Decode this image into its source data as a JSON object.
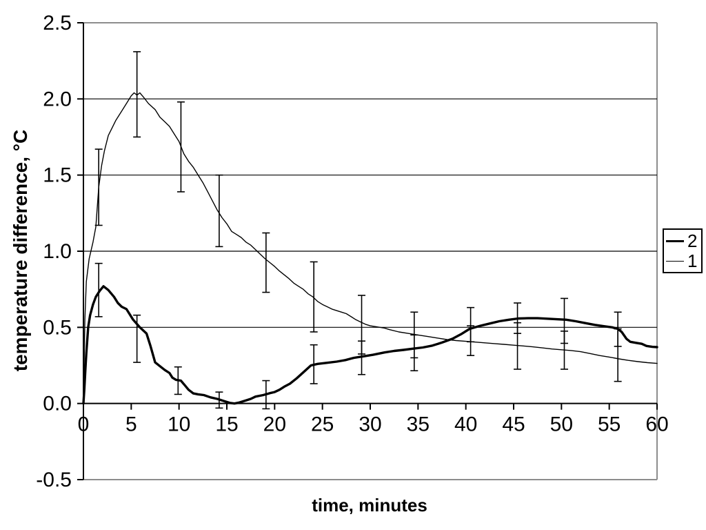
{
  "chart_data": {
    "type": "line",
    "title": "",
    "xlabel": "time, minutes",
    "ylabel": "temperature difference, °C",
    "xlim": [
      0,
      60
    ],
    "ylim": [
      -0.5,
      2.5
    ],
    "xticks": [
      0,
      5,
      10,
      15,
      20,
      25,
      30,
      35,
      40,
      45,
      50,
      55,
      60
    ],
    "ytick_values": [
      2.5,
      2.0,
      1.5,
      1.0,
      0.5,
      0.0,
      -0.5
    ],
    "ytick_labels": [
      "2.5",
      "2.0",
      "1.5",
      "1.0",
      "0.5",
      "0.0",
      "-0.5"
    ],
    "grid": "horizontal gridlines every 0.5",
    "legend": {
      "position": "right-outside",
      "entries": [
        "2",
        "1"
      ]
    },
    "colors": {
      "line": "#000000",
      "gridline": "#000000",
      "plot_border": "#8c8c8c",
      "background": "#ffffff"
    },
    "series": [
      {
        "name": "2",
        "style": "thick",
        "t": [
          0,
          0.1,
          0.2,
          0.3,
          0.5,
          0.7,
          1,
          1.3,
          1.7,
          2.1,
          2.6,
          3.2,
          3.6,
          4,
          4.5,
          5.2,
          5.9,
          6.6,
          7,
          7.5,
          8,
          8.5,
          9,
          9.3,
          9.7,
          10.2,
          10.6,
          11,
          11.5,
          12,
          12.6,
          13.3,
          14,
          14.7,
          15.3,
          15.8,
          16.3,
          17,
          17.5,
          18,
          18.8,
          19.5,
          20,
          20.5,
          21,
          21.6,
          22.3,
          23.1,
          23.8,
          24.5,
          25.5,
          26.5,
          27.4,
          28.3,
          29.3,
          30.3,
          31.5,
          32.5,
          33.5,
          34.5,
          35.5,
          36.5,
          37.5,
          38.6,
          39.5,
          40.4,
          41.5,
          42.5,
          43.5,
          44.5,
          45.5,
          46.5,
          47.5,
          48.5,
          49.5,
          50.5,
          51.5,
          52.5,
          53.5,
          54.5,
          55.3,
          55.9,
          56.3,
          56.8,
          57.2,
          57.8,
          58.4,
          58.9,
          59.5,
          60
        ],
        "v": [
          0,
          0.1,
          0.22,
          0.33,
          0.5,
          0.58,
          0.65,
          0.7,
          0.74,
          0.77,
          0.745,
          0.7,
          0.66,
          0.635,
          0.62,
          0.55,
          0.5,
          0.46,
          0.38,
          0.27,
          0.245,
          0.22,
          0.2,
          0.17,
          0.155,
          0.15,
          0.12,
          0.09,
          0.066,
          0.06,
          0.055,
          0.04,
          0.03,
          0.016,
          0.004,
          0,
          0.006,
          0.02,
          0.03,
          0.045,
          0.055,
          0.068,
          0.075,
          0.09,
          0.11,
          0.13,
          0.165,
          0.21,
          0.25,
          0.26,
          0.267,
          0.275,
          0.285,
          0.3,
          0.31,
          0.32,
          0.335,
          0.345,
          0.352,
          0.36,
          0.368,
          0.38,
          0.4,
          0.425,
          0.455,
          0.49,
          0.51,
          0.525,
          0.54,
          0.55,
          0.558,
          0.56,
          0.56,
          0.557,
          0.553,
          0.55,
          0.54,
          0.528,
          0.516,
          0.507,
          0.5,
          0.49,
          0.47,
          0.425,
          0.405,
          0.398,
          0.392,
          0.378,
          0.372,
          0.37
        ],
        "error_bars": [
          {
            "t": 1.6,
            "low": 0.57,
            "high": 0.92
          },
          {
            "t": 5.6,
            "low": 0.27,
            "high": 0.58
          },
          {
            "t": 9.9,
            "low": 0.06,
            "high": 0.24
          },
          {
            "t": 14.2,
            "low": -0.03,
            "high": 0.075
          },
          {
            "t": 19.1,
            "low": -0.035,
            "high": 0.15
          },
          {
            "t": 24.1,
            "low": 0.13,
            "high": 0.385
          },
          {
            "t": 29.1,
            "low": 0.19,
            "high": 0.41
          },
          {
            "t": 34.6,
            "low": 0.215,
            "high": 0.45
          },
          {
            "t": 40.5,
            "low": 0.405,
            "high": 0.63
          },
          {
            "t": 45.4,
            "low": 0.46,
            "high": 0.66
          },
          {
            "t": 50.3,
            "low": 0.395,
            "high": 0.69
          },
          {
            "t": 55.9,
            "low": 0.375,
            "high": 0.6
          }
        ]
      },
      {
        "name": "1",
        "style": "thin",
        "t": [
          0,
          0.15,
          0.3,
          0.6,
          1,
          1.3,
          1.6,
          1.9,
          2.2,
          2.6,
          3,
          3.4,
          4,
          4.5,
          5,
          5.3,
          5.6,
          5.9,
          6.3,
          6.8,
          7.5,
          8,
          8.5,
          9,
          9.5,
          10,
          10.5,
          11,
          11.5,
          12,
          12.5,
          13,
          13.5,
          14,
          14.5,
          15,
          15.5,
          16,
          16.5,
          17,
          17.5,
          18,
          18.5,
          19,
          19.5,
          20,
          20.5,
          21,
          21.5,
          22,
          22.5,
          23,
          23.5,
          24,
          24.5,
          25,
          25.5,
          26,
          27,
          27.5,
          28,
          28.5,
          29,
          29.5,
          30,
          31,
          31.5,
          32,
          33,
          34,
          35,
          36,
          37,
          38,
          39,
          40,
          41,
          42,
          43,
          44,
          45,
          46,
          47,
          48,
          49,
          50,
          51,
          52,
          53,
          54,
          55,
          56,
          57,
          58,
          59,
          60
        ],
        "v": [
          0,
          0.55,
          0.8,
          0.95,
          1.06,
          1.16,
          1.42,
          1.56,
          1.66,
          1.76,
          1.81,
          1.86,
          1.92,
          1.97,
          2.02,
          2.04,
          2.025,
          2.04,
          2.01,
          1.97,
          1.93,
          1.88,
          1.85,
          1.82,
          1.77,
          1.72,
          1.64,
          1.59,
          1.55,
          1.5,
          1.45,
          1.39,
          1.33,
          1.27,
          1.22,
          1.18,
          1.13,
          1.11,
          1.09,
          1.06,
          1.04,
          1.01,
          0.98,
          0.95,
          0.925,
          0.9,
          0.87,
          0.845,
          0.82,
          0.79,
          0.77,
          0.75,
          0.72,
          0.7,
          0.67,
          0.65,
          0.635,
          0.62,
          0.6,
          0.59,
          0.57,
          0.55,
          0.535,
          0.52,
          0.51,
          0.5,
          0.495,
          0.485,
          0.47,
          0.46,
          0.45,
          0.44,
          0.43,
          0.42,
          0.413,
          0.408,
          0.403,
          0.398,
          0.393,
          0.388,
          0.383,
          0.378,
          0.372,
          0.365,
          0.358,
          0.353,
          0.348,
          0.34,
          0.328,
          0.315,
          0.305,
          0.293,
          0.283,
          0.275,
          0.268,
          0.263
        ],
        "error_bars": [
          {
            "t": 1.6,
            "low": 1.17,
            "high": 1.67
          },
          {
            "t": 5.6,
            "low": 1.75,
            "high": 2.31
          },
          {
            "t": 10.2,
            "low": 1.39,
            "high": 1.98
          },
          {
            "t": 14.2,
            "low": 1.03,
            "high": 1.5
          },
          {
            "t": 19.1,
            "low": 0.73,
            "high": 1.12
          },
          {
            "t": 24.1,
            "low": 0.47,
            "high": 0.93
          },
          {
            "t": 29.1,
            "low": 0.325,
            "high": 0.71
          },
          {
            "t": 34.6,
            "low": 0.3,
            "high": 0.6
          },
          {
            "t": 40.5,
            "low": 0.315,
            "high": 0.51
          },
          {
            "t": 45.4,
            "low": 0.225,
            "high": 0.53
          },
          {
            "t": 50.3,
            "low": 0.225,
            "high": 0.475
          },
          {
            "t": 55.9,
            "low": 0.145,
            "high": 0.49
          }
        ]
      }
    ]
  }
}
